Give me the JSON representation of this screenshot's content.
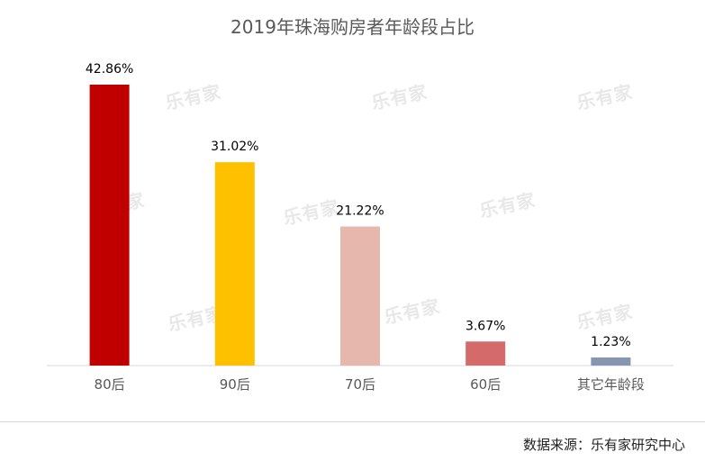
{
  "watermark": "乐有家",
  "source": "数据来源：乐有家研究中心",
  "colors": {
    "title": "#595959",
    "label": "#000000",
    "tick": "#595959",
    "axis": "#d9d9d9"
  },
  "chart_data": {
    "type": "bar",
    "title": "2019年珠海购房者年龄段占比",
    "xlabel": "",
    "ylabel": "",
    "categories": [
      "80后",
      "90后",
      "70后",
      "60后",
      "其它年龄段"
    ],
    "values": [
      42.86,
      31.02,
      21.22,
      3.67,
      1.23
    ],
    "labels": [
      "42.86%",
      "31.02%",
      "21.22%",
      "3.67%",
      "1.23%"
    ],
    "bar_colors": [
      "#c00000",
      "#ffc000",
      "#e6b8ad",
      "#d46a6a",
      "#8496b0"
    ],
    "ylim": [
      0,
      42.86
    ],
    "grid": false,
    "legend": "none"
  }
}
